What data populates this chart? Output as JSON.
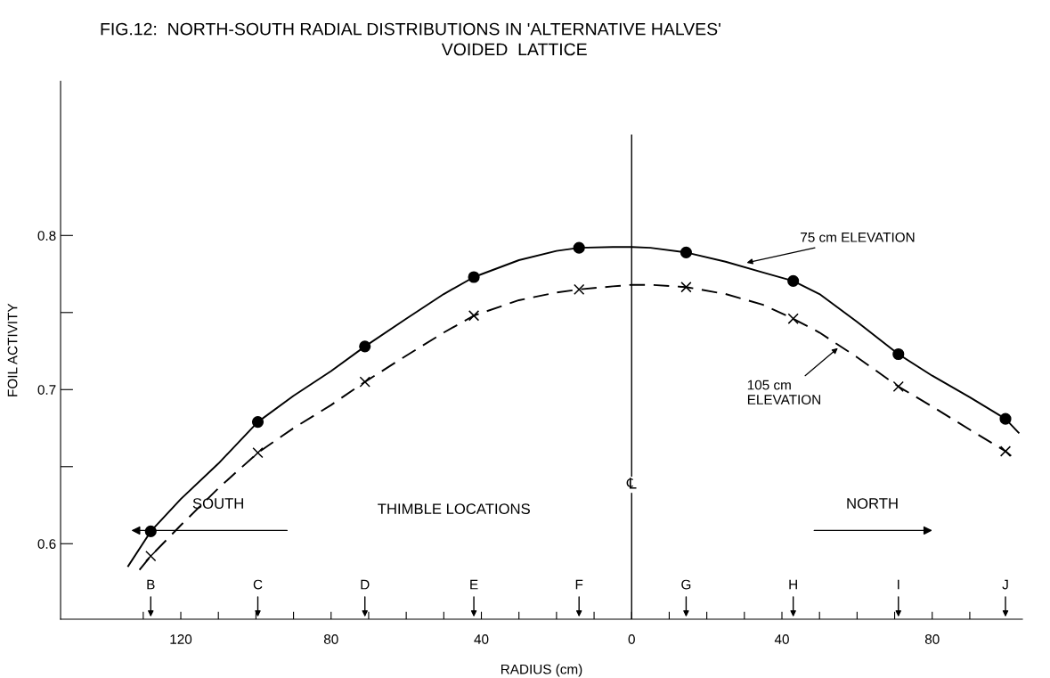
{
  "chart_data": {
    "type": "line",
    "title": "FIG.12:  NORTH-SOUTH RADIAL DISTRIBUTIONS IN 'ALTERNATIVE HALVES'",
    "subtitle": "VOIDED  LATTICE",
    "xlabel": "RADIUS (cm)",
    "ylabel": "FOIL ACTIVITY",
    "series": [
      {
        "type": "line",
        "color": "#000000",
        "line_style": "solid",
        "marker": "none",
        "x": [
          -134,
          -128,
          -120,
          -110,
          -99.5,
          -90,
          -80,
          -71,
          -60,
          -50,
          -42,
          -30,
          -20,
          -14,
          -5,
          0,
          5,
          14.5,
          25,
          35,
          43,
          50,
          60,
          71,
          80,
          90,
          99.5,
          103
        ],
        "values": [
          0.5855,
          0.608,
          0.629,
          0.652,
          0.679,
          0.696,
          0.712,
          0.728,
          0.746,
          0.762,
          0.773,
          0.784,
          0.79,
          0.792,
          0.7925,
          0.7925,
          0.792,
          0.789,
          0.783,
          0.776,
          0.7705,
          0.762,
          0.744,
          0.723,
          0.709,
          0.695,
          0.681,
          0.672
        ]
      },
      {
        "type": "line",
        "color": "#000000",
        "line_style": "dashed",
        "marker": "none",
        "x": [
          -131,
          -128,
          -120,
          -110,
          -99.5,
          -90,
          -80,
          -71,
          -60,
          -50,
          -42,
          -30,
          -20,
          -14,
          -5,
          0,
          5,
          14.5,
          25,
          35,
          43,
          50,
          60,
          71,
          80,
          90,
          99.5,
          101
        ],
        "values": [
          0.583,
          0.592,
          0.612,
          0.636,
          0.659,
          0.675,
          0.69,
          0.705,
          0.722,
          0.737,
          0.748,
          0.758,
          0.763,
          0.765,
          0.767,
          0.768,
          0.768,
          0.7665,
          0.762,
          0.755,
          0.746,
          0.737,
          0.721,
          0.702,
          0.689,
          0.674,
          0.66,
          0.657
        ]
      },
      {
        "type": "scatter",
        "color": "#000000",
        "marker": "circle",
        "x": [
          -128,
          -99.5,
          -71,
          -42,
          -14,
          14.5,
          43,
          71,
          99.5
        ],
        "values": [
          0.608,
          0.679,
          0.728,
          0.773,
          0.792,
          0.789,
          0.7705,
          0.723,
          0.681
        ]
      },
      {
        "type": "scatter",
        "color": "#000000",
        "marker": "cross",
        "x": [
          -128,
          -99.5,
          -71,
          -42,
          -14,
          14.5,
          43,
          71,
          99.5
        ],
        "values": [
          0.592,
          0.659,
          0.705,
          0.748,
          0.765,
          0.7665,
          0.746,
          0.702,
          0.66
        ]
      }
    ],
    "xlim": [
      -152,
      104
    ],
    "ylim": [
      0.551,
      0.9
    ],
    "xticks": [
      {
        "value": -130,
        "label": null
      },
      {
        "value": -120,
        "label": "120"
      },
      {
        "value": -110,
        "label": null
      },
      {
        "value": -100,
        "label": null
      },
      {
        "value": -90,
        "label": null
      },
      {
        "value": -80,
        "label": "80"
      },
      {
        "value": -70,
        "label": null
      },
      {
        "value": -60,
        "label": null
      },
      {
        "value": -50,
        "label": null
      },
      {
        "value": -40,
        "label": "40"
      },
      {
        "value": -30,
        "label": null
      },
      {
        "value": -20,
        "label": null
      },
      {
        "value": -10,
        "label": null
      },
      0,
      {
        "value": 10,
        "label": null
      },
      {
        "value": 20,
        "label": null
      },
      {
        "value": 30,
        "label": null
      },
      40,
      {
        "value": 50,
        "label": null
      },
      {
        "value": 60,
        "label": null
      },
      {
        "value": 70,
        "label": null
      },
      80,
      {
        "value": 90,
        "label": null
      }
    ],
    "yticks": [
      0.6,
      {
        "value": 0.65,
        "label": null
      },
      0.7,
      {
        "value": 0.75,
        "label": null
      },
      0.8
    ],
    "ref_lines": [
      {
        "axis": "x",
        "value": 0,
        "label": "℄"
      }
    ],
    "annotations": [
      {
        "text": "75 cm ELEVATION",
        "x": 30,
        "y": 0.782
      },
      {
        "text": "105 cm\nELEVATION",
        "x": 55.4,
        "y": 0.728
      },
      "SOUTH",
      "THIMBLE LOCATIONS",
      "NORTH",
      "B",
      "C",
      "D",
      "E",
      "F",
      "G",
      "H",
      "I",
      "J"
    ],
    "grid": false,
    "legend": false
  }
}
